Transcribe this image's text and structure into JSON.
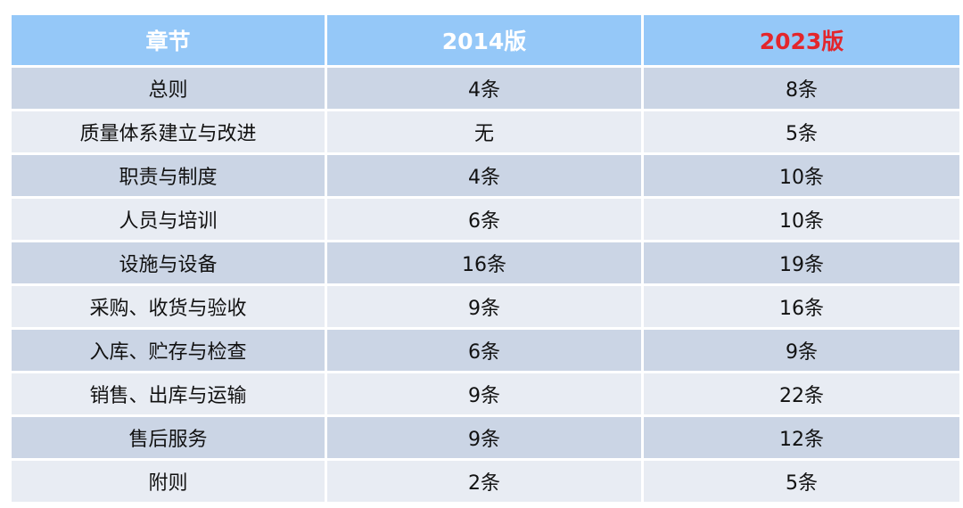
{
  "header": {
    "col1": "章节",
    "col2": "2014版",
    "col3": "2023版"
  },
  "rows": [
    {
      "chapter": "总则",
      "v2014": "4条",
      "v2023": "8条"
    },
    {
      "chapter": "质量体系建立与改进",
      "v2014": "无",
      "v2023": "5条"
    },
    {
      "chapter": "职责与制度",
      "v2014": "4条",
      "v2023": "10条"
    },
    {
      "chapter": "人员与培训",
      "v2014": "6条",
      "v2023": "10条"
    },
    {
      "chapter": "设施与设备",
      "v2014": "16条",
      "v2023": "19条"
    },
    {
      "chapter": "采购、收货与验收",
      "v2014": "9条",
      "v2023": "16条"
    },
    {
      "chapter": "入库、贮存与检查",
      "v2014": "6条",
      "v2023": "9条"
    },
    {
      "chapter": "销售、出库与运输",
      "v2014": "9条",
      "v2023": "22条"
    },
    {
      "chapter": "售后服务",
      "v2014": "9条",
      "v2023": "12条"
    },
    {
      "chapter": "附则",
      "v2014": "2条",
      "v2023": "5条"
    }
  ],
  "colors": {
    "header_bg": "#95c8f8",
    "header_text": "#ffffff",
    "highlight_text": "#e3262c",
    "row_dark": "#cbd5e5",
    "row_light": "#e8ecf3"
  }
}
